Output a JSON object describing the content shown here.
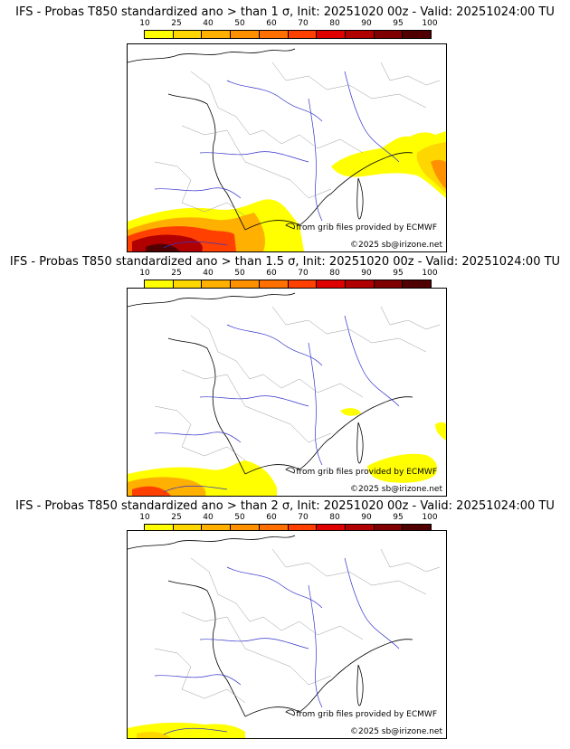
{
  "panels": [
    {
      "title": "IFS - Probas T850  standardized ano > than 1 σ, Init: 20251020 00z - Valid: 20251024:00 TU"
    },
    {
      "title": "IFS - Probas T850  standardized ano > than 1.5 σ, Init: 20251020 00z - Valid: 20251024:00 TU"
    },
    {
      "title": "IFS - Probas T850  standardized ano > than 2 σ, Init: 20251020 00z - Valid: 20251024:00 TU"
    }
  ],
  "colorbar": {
    "labels": [
      "10",
      "25",
      "40",
      "50",
      "60",
      "70",
      "80",
      "90",
      "95",
      "100"
    ],
    "colors": [
      "#ffff00",
      "#ffd700",
      "#ffb000",
      "#ff9000",
      "#ff7000",
      "#ff4000",
      "#e00000",
      "#b00000",
      "#800000",
      "#500000"
    ]
  },
  "credits": {
    "source": "from grib files provided by ECMWF",
    "copyright": "©2025 sb@irizone.net"
  }
}
